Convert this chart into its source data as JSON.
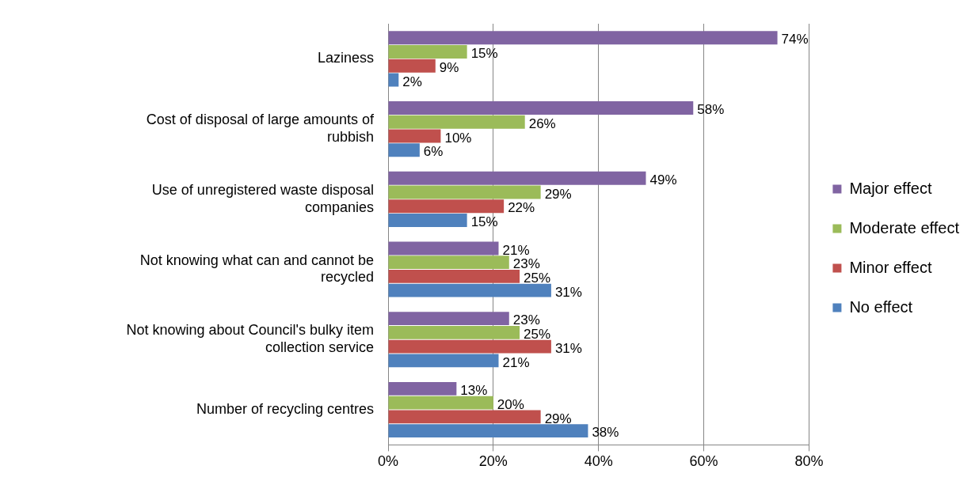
{
  "chart_data": {
    "type": "bar",
    "orientation": "horizontal",
    "categories": [
      "Laziness",
      "Cost of disposal of large amounts of rubbish",
      "Use of unregistered waste disposal companies",
      "Not knowing what can and cannot be recycled",
      "Not knowing about Council's bulky item collection service",
      "Number of recycling centres"
    ],
    "series": [
      {
        "name": "Major effect",
        "color": "#8064a2",
        "values": [
          74,
          58,
          49,
          21,
          23,
          13
        ],
        "value_labels": [
          "74%",
          "58%",
          "49%",
          "21%",
          "23%",
          "13%"
        ]
      },
      {
        "name": "Moderate effect",
        "color": "#9bbb59",
        "values": [
          15,
          26,
          29,
          23,
          25,
          20
        ],
        "value_labels": [
          "15%",
          "26%",
          "29%",
          "23%",
          "25%",
          "20%"
        ]
      },
      {
        "name": "Minor effect",
        "color": "#c0504d",
        "values": [
          9,
          10,
          22,
          25,
          31,
          29
        ],
        "value_labels": [
          "9%",
          "10%",
          "22%",
          "25%",
          "31%",
          "29%"
        ]
      },
      {
        "name": "No effect",
        "color": "#4f81bd",
        "values": [
          2,
          6,
          15,
          31,
          21,
          38
        ],
        "value_labels": [
          "2%",
          "6%",
          "15%",
          "31%",
          "21%",
          "38%"
        ]
      }
    ],
    "xlim": [
      0,
      80
    ],
    "xticks": [
      {
        "value": 0,
        "label": "0%"
      },
      {
        "value": 20,
        "label": "20%"
      },
      {
        "value": 40,
        "label": "40%"
      },
      {
        "value": 60,
        "label": "60%"
      },
      {
        "value": 80,
        "label": "80%"
      }
    ],
    "grid": "x",
    "legend": "right"
  }
}
